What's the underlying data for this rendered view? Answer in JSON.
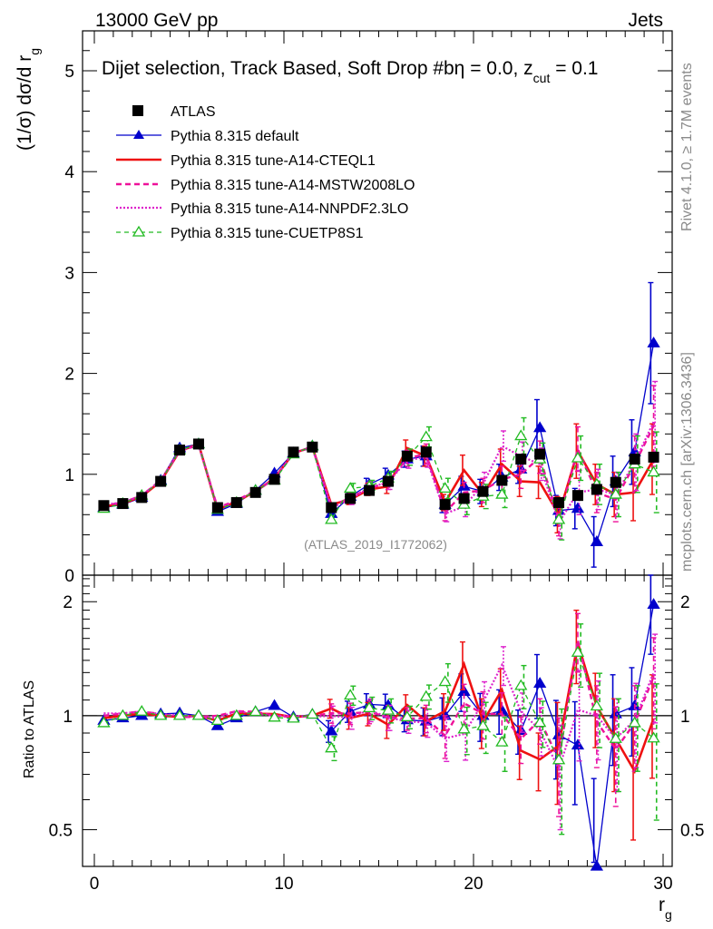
{
  "header": {
    "energy_label": "13000 GeV pp",
    "category_label": "Jets"
  },
  "side_labels": {
    "rivet": "Rivet 4.1.0, ≥ 1.7M events",
    "mcplots": "mcplots.cern.ch [arXiv:1306.3436]"
  },
  "colors": {
    "atlas": "#000000",
    "pythia_default": "#0000cc",
    "cteql1": "#ee1111",
    "mstw": "#ee1199",
    "nnpdf": "#dd22cc",
    "cuetp8s1": "#22bb22"
  },
  "chart_data": [
    {
      "type": "line",
      "panel": "main",
      "title": "Dijet selection, Track Based, Soft Drop #bη = 0.0, z",
      "title_subscript": "cut",
      "title_suffix": " = 0.1",
      "ylabel": "(1/σ) dσ/d r",
      "ylabel_subscript": "g",
      "watermark": "(ATLAS_2019_I1772062)",
      "xlim": [
        -0.5,
        30.5
      ],
      "ylim": [
        0,
        5.4
      ],
      "yticks": [
        0,
        1,
        2,
        3,
        4,
        5
      ],
      "ytick_labels": [
        "0",
        "1",
        "2",
        "3",
        "4",
        "5"
      ],
      "x": [
        0.5,
        1.5,
        2.5,
        3.5,
        4.5,
        5.5,
        6.5,
        7.5,
        8.5,
        9.5,
        10.5,
        11.5,
        12.5,
        13.5,
        14.5,
        15.5,
        16.5,
        17.5,
        18.5,
        19.5,
        20.5,
        21.5,
        22.5,
        23.5,
        24.5,
        25.5,
        26.5,
        27.5,
        28.5,
        29.5
      ],
      "data": {
        "name": "ATLAS",
        "values": [
          0.69,
          0.71,
          0.77,
          0.93,
          1.24,
          1.3,
          0.67,
          0.72,
          0.82,
          0.95,
          1.22,
          1.27,
          0.67,
          0.76,
          0.84,
          0.93,
          1.18,
          1.22,
          0.7,
          0.76,
          0.83,
          0.94,
          1.15,
          1.2,
          0.72,
          0.79,
          0.85,
          0.92,
          1.15,
          1.17
        ]
      },
      "series": [
        {
          "name": "Pythia 8.315 default",
          "key": "pythia_default",
          "style": "solid",
          "marker": "triangle",
          "values": [
            0.67,
            0.7,
            0.77,
            0.94,
            1.26,
            1.3,
            0.63,
            0.71,
            0.84,
            1.01,
            1.21,
            1.28,
            0.61,
            0.78,
            0.9,
            0.99,
            1.15,
            1.18,
            0.7,
            0.88,
            0.83,
            0.97,
            1.05,
            1.46,
            0.64,
            0.66,
            0.33,
            0.93,
            1.22,
            2.3
          ],
          "errors": [
            0.02,
            0.02,
            0.02,
            0.02,
            0.02,
            0.02,
            0.02,
            0.02,
            0.03,
            0.03,
            0.03,
            0.03,
            0.04,
            0.05,
            0.06,
            0.07,
            0.08,
            0.1,
            0.08,
            0.1,
            0.12,
            0.13,
            0.14,
            0.28,
            0.15,
            0.2,
            0.25,
            0.25,
            0.32,
            0.6
          ]
        },
        {
          "name": "Pythia 8.315 tune-A14-CTEQL1",
          "key": "cteql1",
          "style": "solid-thick",
          "marker": "none",
          "values": [
            0.68,
            0.71,
            0.78,
            0.93,
            1.23,
            1.3,
            0.65,
            0.73,
            0.83,
            0.96,
            1.21,
            1.27,
            0.7,
            0.75,
            0.85,
            0.88,
            1.26,
            1.18,
            0.72,
            1.04,
            0.8,
            1.1,
            0.93,
            0.92,
            0.6,
            1.23,
            0.9,
            0.8,
            0.82,
            1.15
          ],
          "errors": [
            0.02,
            0.02,
            0.02,
            0.02,
            0.02,
            0.02,
            0.02,
            0.02,
            0.03,
            0.03,
            0.03,
            0.03,
            0.04,
            0.05,
            0.06,
            0.07,
            0.08,
            0.1,
            0.08,
            0.15,
            0.12,
            0.15,
            0.15,
            0.16,
            0.18,
            0.27,
            0.2,
            0.22,
            0.28,
            0.35
          ]
        },
        {
          "name": "Pythia 8.315 tune-A14-MSTW2008LO",
          "key": "mstw",
          "style": "dashed",
          "marker": "none",
          "values": [
            0.69,
            0.72,
            0.79,
            0.94,
            1.23,
            1.29,
            0.67,
            0.74,
            0.84,
            0.95,
            1.21,
            1.27,
            0.68,
            0.77,
            0.86,
            0.92,
            1.16,
            1.2,
            0.62,
            0.82,
            0.84,
            0.95,
            1.0,
            1.17,
            0.55,
            1.25,
            0.82,
            0.75,
            1.1,
            1.48
          ],
          "errors": [
            0.02,
            0.02,
            0.02,
            0.02,
            0.02,
            0.02,
            0.02,
            0.02,
            0.03,
            0.03,
            0.03,
            0.03,
            0.04,
            0.05,
            0.06,
            0.07,
            0.08,
            0.1,
            0.08,
            0.1,
            0.12,
            0.13,
            0.14,
            0.16,
            0.16,
            0.22,
            0.2,
            0.22,
            0.28,
            0.4
          ]
        },
        {
          "name": "Pythia 8.315 tune-A14-NNPDF2.3LO",
          "key": "nnpdf",
          "style": "dotted",
          "marker": "none",
          "values": [
            0.7,
            0.72,
            0.79,
            0.94,
            1.24,
            1.29,
            0.66,
            0.74,
            0.83,
            0.95,
            1.22,
            1.26,
            0.67,
            0.75,
            0.87,
            0.92,
            1.14,
            1.17,
            0.61,
            0.68,
            0.9,
            1.28,
            1.18,
            1.1,
            0.52,
            0.82,
            0.85,
            0.8,
            1.12,
            1.52
          ],
          "errors": [
            0.02,
            0.02,
            0.02,
            0.02,
            0.02,
            0.02,
            0.02,
            0.02,
            0.03,
            0.03,
            0.03,
            0.03,
            0.04,
            0.05,
            0.06,
            0.07,
            0.08,
            0.1,
            0.08,
            0.1,
            0.12,
            0.15,
            0.14,
            0.16,
            0.16,
            0.22,
            0.2,
            0.22,
            0.28,
            0.4
          ]
        },
        {
          "name": "Pythia 8.315 tune-CUETP8S1",
          "key": "cuetp8s1",
          "style": "dashed-thin",
          "marker": "triangle-open",
          "values": [
            0.66,
            0.71,
            0.79,
            0.93,
            1.24,
            1.3,
            0.65,
            0.72,
            0.84,
            0.94,
            1.2,
            1.28,
            0.55,
            0.86,
            0.88,
            0.96,
            1.17,
            1.37,
            0.86,
            0.7,
            0.78,
            0.8,
            1.38,
            1.15,
            0.55,
            1.16,
            0.9,
            0.8,
            1.1,
            1.02
          ],
          "errors": [
            0.02,
            0.02,
            0.02,
            0.02,
            0.02,
            0.02,
            0.02,
            0.02,
            0.03,
            0.03,
            0.03,
            0.03,
            0.04,
            0.05,
            0.06,
            0.07,
            0.08,
            0.1,
            0.1,
            0.1,
            0.12,
            0.13,
            0.18,
            0.16,
            0.2,
            0.22,
            0.2,
            0.22,
            0.28,
            0.4
          ]
        }
      ]
    },
    {
      "type": "line",
      "panel": "ratio",
      "ylabel": "Ratio to ATLAS",
      "xlabel": "r",
      "xlabel_subscript": "g",
      "xlim": [
        -0.5,
        30.5
      ],
      "ylim": [
        0.4,
        2.35
      ],
      "log_y": true,
      "xticks": [
        0,
        10,
        20,
        30
      ],
      "xtick_labels": [
        "0",
        "10",
        "20",
        "30"
      ],
      "yticks": [
        0.5,
        1,
        2
      ],
      "ytick_labels": [
        "0.5",
        "1",
        "2"
      ],
      "reference_line": 1
    }
  ]
}
